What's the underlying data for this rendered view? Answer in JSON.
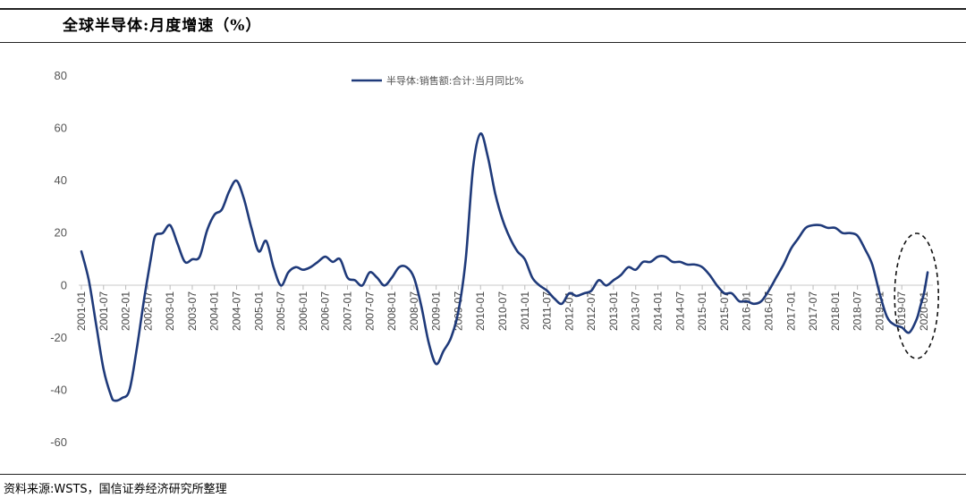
{
  "header": {
    "title": "全球半导体:月度增速（%）"
  },
  "footer": {
    "source": "资料来源:WSTS，国信证券经济研究所整理"
  },
  "chart_data": {
    "type": "line",
    "title": "全球半导体:月度增速（%）",
    "xlabel": "",
    "ylabel": "",
    "ylim": [
      -60,
      80
    ],
    "yticks": [
      80,
      60,
      40,
      20,
      0,
      -20,
      -40,
      -60
    ],
    "xticks": [
      "2001-01",
      "2001-07",
      "2002-01",
      "2002-07",
      "2003-01",
      "2003-07",
      "2004-01",
      "2004-07",
      "2005-01",
      "2005-07",
      "2006-01",
      "2006-07",
      "2007-01",
      "2007-07",
      "2008-01",
      "2008-07",
      "2009-01",
      "2009-07",
      "2010-01",
      "2010-07",
      "2011-01",
      "2011-07",
      "2012-01",
      "2012-07",
      "2013-01",
      "2013-07",
      "2014-01",
      "2014-07",
      "2015-01",
      "2015-07",
      "2016-01",
      "2016-07",
      "2017-01",
      "2017-07",
      "2018-01",
      "2018-07",
      "2019-01",
      "2019-07",
      "2020-01"
    ],
    "legend": {
      "position": "top-center"
    },
    "grid": false,
    "color": "#1f3a7a",
    "highlight": {
      "type": "dashed-ellipse",
      "x_range": [
        "2019-07",
        "2020-02"
      ]
    },
    "series": [
      {
        "name": "半导体:销售额:合计:当月同比%",
        "points": [
          [
            "2001-01",
            13
          ],
          [
            "2001-03",
            2
          ],
          [
            "2001-05",
            -15
          ],
          [
            "2001-07",
            -32
          ],
          [
            "2001-09",
            -42
          ],
          [
            "2001-10",
            -44
          ],
          [
            "2001-12",
            -43
          ],
          [
            "2002-02",
            -40
          ],
          [
            "2002-04",
            -24
          ],
          [
            "2002-06",
            -5
          ],
          [
            "2002-08",
            12
          ],
          [
            "2002-09",
            19
          ],
          [
            "2002-11",
            20
          ],
          [
            "2003-01",
            23
          ],
          [
            "2003-03",
            16
          ],
          [
            "2003-05",
            9
          ],
          [
            "2003-07",
            10
          ],
          [
            "2003-09",
            11
          ],
          [
            "2003-11",
            21
          ],
          [
            "2004-01",
            27
          ],
          [
            "2004-03",
            29
          ],
          [
            "2004-05",
            36
          ],
          [
            "2004-07",
            40
          ],
          [
            "2004-09",
            33
          ],
          [
            "2004-11",
            22
          ],
          [
            "2005-01",
            13
          ],
          [
            "2005-03",
            17
          ],
          [
            "2005-05",
            7
          ],
          [
            "2005-07",
            0
          ],
          [
            "2005-09",
            5
          ],
          [
            "2005-11",
            7
          ],
          [
            "2006-01",
            6
          ],
          [
            "2006-03",
            7
          ],
          [
            "2006-05",
            9
          ],
          [
            "2006-07",
            11
          ],
          [
            "2006-09",
            9
          ],
          [
            "2006-11",
            10
          ],
          [
            "2007-01",
            3
          ],
          [
            "2007-03",
            2
          ],
          [
            "2007-05",
            0
          ],
          [
            "2007-07",
            5
          ],
          [
            "2007-09",
            3
          ],
          [
            "2007-11",
            0
          ],
          [
            "2008-01",
            3
          ],
          [
            "2008-03",
            7
          ],
          [
            "2008-05",
            7
          ],
          [
            "2008-07",
            3
          ],
          [
            "2008-09",
            -8
          ],
          [
            "2008-11",
            -22
          ],
          [
            "2009-01",
            -30
          ],
          [
            "2009-03",
            -25
          ],
          [
            "2009-05",
            -20
          ],
          [
            "2009-07",
            -10
          ],
          [
            "2009-09",
            10
          ],
          [
            "2009-11",
            45
          ],
          [
            "2010-01",
            58
          ],
          [
            "2010-03",
            49
          ],
          [
            "2010-05",
            35
          ],
          [
            "2010-07",
            25
          ],
          [
            "2010-09",
            18
          ],
          [
            "2010-11",
            13
          ],
          [
            "2011-01",
            10
          ],
          [
            "2011-03",
            3
          ],
          [
            "2011-05",
            0
          ],
          [
            "2011-07",
            -2
          ],
          [
            "2011-09",
            -5
          ],
          [
            "2011-11",
            -7
          ],
          [
            "2012-01",
            -3
          ],
          [
            "2012-03",
            -4
          ],
          [
            "2012-05",
            -3
          ],
          [
            "2012-07",
            -2
          ],
          [
            "2012-09",
            2
          ],
          [
            "2012-11",
            0
          ],
          [
            "2013-01",
            2
          ],
          [
            "2013-03",
            4
          ],
          [
            "2013-05",
            7
          ],
          [
            "2013-07",
            6
          ],
          [
            "2013-09",
            9
          ],
          [
            "2013-11",
            9
          ],
          [
            "2014-01",
            11
          ],
          [
            "2014-03",
            11
          ],
          [
            "2014-05",
            9
          ],
          [
            "2014-07",
            9
          ],
          [
            "2014-09",
            8
          ],
          [
            "2014-11",
            8
          ],
          [
            "2015-01",
            7
          ],
          [
            "2015-03",
            4
          ],
          [
            "2015-05",
            0
          ],
          [
            "2015-07",
            -3
          ],
          [
            "2015-09",
            -3
          ],
          [
            "2015-11",
            -6
          ],
          [
            "2016-01",
            -6
          ],
          [
            "2016-03",
            -7
          ],
          [
            "2016-05",
            -6
          ],
          [
            "2016-07",
            -2
          ],
          [
            "2016-09",
            3
          ],
          [
            "2016-11",
            8
          ],
          [
            "2017-01",
            14
          ],
          [
            "2017-03",
            18
          ],
          [
            "2017-05",
            22
          ],
          [
            "2017-07",
            23
          ],
          [
            "2017-09",
            23
          ],
          [
            "2017-11",
            22
          ],
          [
            "2018-01",
            22
          ],
          [
            "2018-03",
            20
          ],
          [
            "2018-05",
            20
          ],
          [
            "2018-07",
            19
          ],
          [
            "2018-09",
            14
          ],
          [
            "2018-11",
            8
          ],
          [
            "2019-01",
            -3
          ],
          [
            "2019-03",
            -12
          ],
          [
            "2019-05",
            -15
          ],
          [
            "2019-07",
            -16
          ],
          [
            "2019-09",
            -18
          ],
          [
            "2019-11",
            -13
          ],
          [
            "2019-12",
            -8
          ],
          [
            "2020-01",
            -3
          ],
          [
            "2020-02",
            5
          ]
        ]
      }
    ]
  }
}
